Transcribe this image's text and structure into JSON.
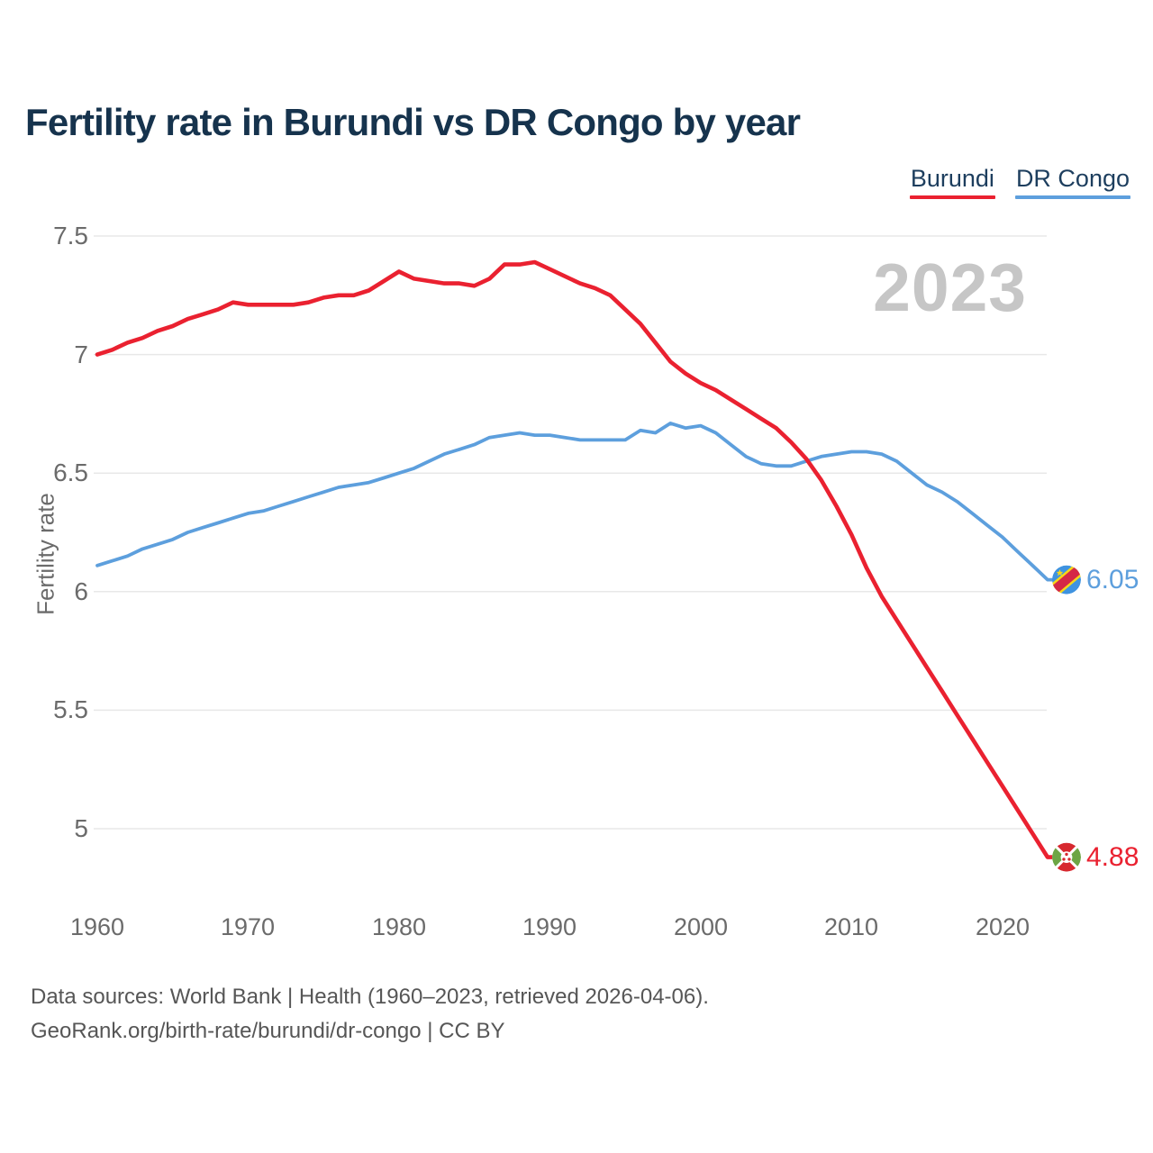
{
  "title": "Fertility rate in Burundi vs DR Congo by year",
  "legend": {
    "items": [
      {
        "label": "Burundi",
        "color": "#ea2130"
      },
      {
        "label": "DR Congo",
        "color": "#5d9fdd"
      }
    ]
  },
  "axis": {
    "y_label": "Fertility rate",
    "y_ticks": [
      "7.5",
      "7",
      "6.5",
      "6",
      "5.5",
      "5"
    ],
    "x_ticks": [
      "1960",
      "1970",
      "1980",
      "1990",
      "2000",
      "2010",
      "2020"
    ]
  },
  "watermark": "2023",
  "end_labels": {
    "dr_congo": "6.05",
    "burundi": "4.88"
  },
  "footer": {
    "line1": "Data sources: World Bank | Health (1960–2023, retrieved 2026-04-06).",
    "line2": "GeoRank.org/birth-rate/burundi/dr-congo | CC BY"
  },
  "icons": {
    "burundi_flag": "burundi-flag-icon",
    "dr_congo_flag": "dr-congo-flag-icon"
  },
  "colors": {
    "title_text": "#16334d",
    "legend_text": "#1d3e5e",
    "axis_text": "#6b6b6b",
    "gridline": "#e8e8e8",
    "watermark": "#c6c6c6",
    "footer_text": "#565656",
    "burundi_red": "#ea2130",
    "dr_congo_blue": "#5d9fdd",
    "background": "#ffffff"
  },
  "chart_data": {
    "type": "line",
    "title": "Fertility rate in Burundi vs DR Congo by year",
    "xlabel": "",
    "ylabel": "Fertility rate",
    "x_start": 1960,
    "x_end": 2023,
    "xlim": [
      1960,
      2023
    ],
    "ylim": [
      4.75,
      7.5
    ],
    "grid": "horizontal",
    "legend_position": "top-right",
    "y_ticks": [
      "7.5",
      "7",
      "6.5",
      "6",
      "5.5",
      "5"
    ],
    "x_ticks": [
      "1960",
      "1970",
      "1980",
      "1990",
      "2000",
      "2010",
      "2020"
    ],
    "watermark": "2023",
    "series": [
      {
        "name": "Burundi",
        "color": "#ea2130",
        "end_label": "4.88",
        "values": [
          7.0,
          7.02,
          7.05,
          7.07,
          7.1,
          7.12,
          7.15,
          7.17,
          7.19,
          7.22,
          7.21,
          7.21,
          7.21,
          7.21,
          7.22,
          7.24,
          7.25,
          7.25,
          7.27,
          7.31,
          7.35,
          7.32,
          7.31,
          7.3,
          7.3,
          7.29,
          7.32,
          7.38,
          7.38,
          7.39,
          7.36,
          7.33,
          7.3,
          7.28,
          7.25,
          7.19,
          7.13,
          7.05,
          6.97,
          6.92,
          6.88,
          6.85,
          6.81,
          6.77,
          6.73,
          6.69,
          6.63,
          6.56,
          6.47,
          6.36,
          6.24,
          6.1,
          5.98,
          5.88,
          5.78,
          5.68,
          5.58,
          5.48,
          5.38,
          5.28,
          5.18,
          5.08,
          4.98,
          4.88
        ]
      },
      {
        "name": "DR Congo",
        "color": "#5d9fdd",
        "end_label": "6.05",
        "values": [
          6.11,
          6.13,
          6.15,
          6.18,
          6.2,
          6.22,
          6.25,
          6.27,
          6.29,
          6.31,
          6.33,
          6.34,
          6.36,
          6.38,
          6.4,
          6.42,
          6.44,
          6.45,
          6.46,
          6.48,
          6.5,
          6.52,
          6.55,
          6.58,
          6.6,
          6.62,
          6.65,
          6.66,
          6.67,
          6.66,
          6.66,
          6.65,
          6.64,
          6.64,
          6.64,
          6.64,
          6.68,
          6.67,
          6.71,
          6.69,
          6.7,
          6.67,
          6.62,
          6.57,
          6.54,
          6.53,
          6.53,
          6.55,
          6.57,
          6.58,
          6.59,
          6.59,
          6.58,
          6.55,
          6.5,
          6.45,
          6.42,
          6.38,
          6.33,
          6.28,
          6.23,
          6.17,
          6.11,
          6.05
        ]
      }
    ]
  }
}
